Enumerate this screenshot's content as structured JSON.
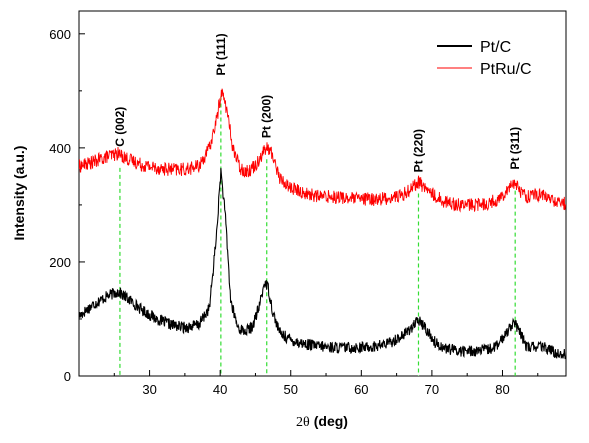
{
  "chart_data": {
    "type": "line",
    "xlabel_symbol": "2θ",
    "xlabel_unit": "(deg)",
    "ylabel": "Intensity (a.u.)",
    "xlim": [
      20,
      89
    ],
    "ylim": [
      0,
      640
    ],
    "x_ticks": [
      30,
      40,
      50,
      60,
      70,
      80
    ],
    "y_ticks": [
      0,
      200,
      400,
      600
    ],
    "legend_position": "top-right",
    "series": [
      {
        "name": "Pt/C",
        "color": "#000000",
        "points": [
          [
            20,
            105
          ],
          [
            22,
            125
          ],
          [
            24,
            140
          ],
          [
            25.5,
            148
          ],
          [
            27,
            135
          ],
          [
            29,
            115
          ],
          [
            31,
            100
          ],
          [
            33,
            90
          ],
          [
            35,
            85
          ],
          [
            37,
            90
          ],
          [
            38.5,
            120
          ],
          [
            39.5,
            250
          ],
          [
            40.1,
            360
          ],
          [
            40.8,
            270
          ],
          [
            41.5,
            130
          ],
          [
            42.5,
            85
          ],
          [
            43.5,
            78
          ],
          [
            44.5,
            85
          ],
          [
            45.5,
            120
          ],
          [
            46.3,
            165
          ],
          [
            46.8,
            155
          ],
          [
            47.5,
            110
          ],
          [
            48.5,
            75
          ],
          [
            50,
            63
          ],
          [
            52,
            56
          ],
          [
            54,
            52
          ],
          [
            56,
            50
          ],
          [
            58,
            50
          ],
          [
            60,
            50
          ],
          [
            62,
            52
          ],
          [
            64,
            58
          ],
          [
            66,
            72
          ],
          [
            67.5,
            90
          ],
          [
            68.2,
            97
          ],
          [
            69,
            85
          ],
          [
            70.5,
            58
          ],
          [
            72,
            48
          ],
          [
            74,
            44
          ],
          [
            76,
            44
          ],
          [
            78,
            46
          ],
          [
            79.5,
            55
          ],
          [
            80.8,
            82
          ],
          [
            81.6,
            95
          ],
          [
            82.5,
            75
          ],
          [
            83.5,
            50
          ],
          [
            85,
            52
          ],
          [
            86.5,
            48
          ],
          [
            87.5,
            40
          ],
          [
            89,
            38
          ]
        ],
        "noise": 10
      },
      {
        "name": "PtRu/C",
        "color": "#ff0000",
        "points": [
          [
            20,
            368
          ],
          [
            22,
            375
          ],
          [
            24,
            385
          ],
          [
            25.5,
            390
          ],
          [
            27,
            380
          ],
          [
            29,
            370
          ],
          [
            31,
            365
          ],
          [
            33,
            362
          ],
          [
            35,
            362
          ],
          [
            37,
            368
          ],
          [
            38.5,
            400
          ],
          [
            39.5,
            450
          ],
          [
            40.2,
            500
          ],
          [
            40.9,
            470
          ],
          [
            41.8,
            400
          ],
          [
            42.8,
            365
          ],
          [
            43.8,
            358
          ],
          [
            45,
            370
          ],
          [
            46.2,
            395
          ],
          [
            46.8,
            400
          ],
          [
            47.5,
            385
          ],
          [
            48.5,
            345
          ],
          [
            50,
            330
          ],
          [
            52,
            320
          ],
          [
            54,
            315
          ],
          [
            56,
            315
          ],
          [
            58,
            312
          ],
          [
            60,
            310
          ],
          [
            62,
            310
          ],
          [
            64,
            312
          ],
          [
            66,
            318
          ],
          [
            67.5,
            335
          ],
          [
            68.2,
            340
          ],
          [
            69,
            330
          ],
          [
            70.5,
            315
          ],
          [
            72,
            305
          ],
          [
            74,
            300
          ],
          [
            76,
            300
          ],
          [
            78,
            303
          ],
          [
            79.5,
            310
          ],
          [
            80.8,
            330
          ],
          [
            81.6,
            340
          ],
          [
            82.5,
            325
          ],
          [
            83.5,
            315
          ],
          [
            85,
            318
          ],
          [
            86.5,
            313
          ],
          [
            87.5,
            305
          ],
          [
            89,
            302
          ]
        ],
        "noise": 12
      }
    ],
    "annotations": [
      {
        "label": "C (002)",
        "x": 25.8,
        "y_top": 395
      },
      {
        "label": "Pt (111)",
        "x": 40.1,
        "y_top": 520
      },
      {
        "label": "Pt (200)",
        "x": 46.6,
        "y_top": 410
      },
      {
        "label": "Pt (220)",
        "x": 68.1,
        "y_top": 350
      },
      {
        "label": "Pt (311)",
        "x": 81.8,
        "y_top": 355
      }
    ],
    "reference_line_color": "#33dd33"
  }
}
